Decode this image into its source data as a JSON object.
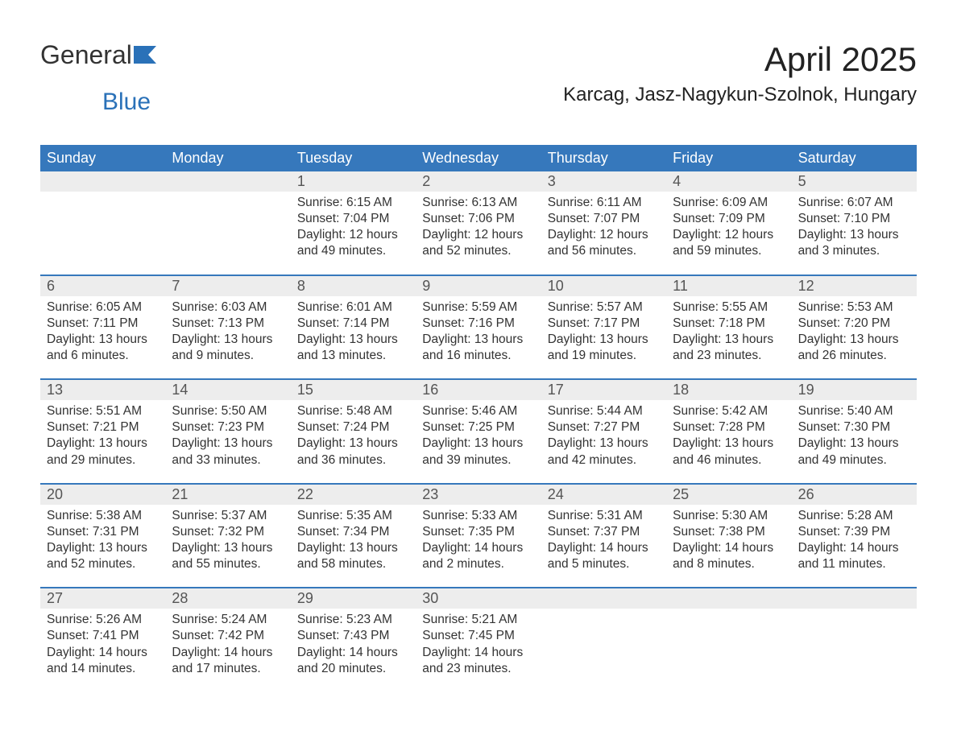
{
  "brand": {
    "part1": "General",
    "part2": "Blue"
  },
  "title": "April 2025",
  "location": "Karcag, Jasz-Nagykun-Szolnok, Hungary",
  "colors": {
    "header_bg": "#3678bc",
    "header_text": "#ffffff",
    "daynum_bg": "#ededed",
    "body_text": "#333333",
    "accent": "#2a71b8"
  },
  "day_labels": [
    "Sunday",
    "Monday",
    "Tuesday",
    "Wednesday",
    "Thursday",
    "Friday",
    "Saturday"
  ],
  "weeks": [
    [
      null,
      null,
      {
        "n": "1",
        "sunrise": "Sunrise: 6:15 AM",
        "sunset": "Sunset: 7:04 PM",
        "dl1": "Daylight: 12 hours",
        "dl2": "and 49 minutes."
      },
      {
        "n": "2",
        "sunrise": "Sunrise: 6:13 AM",
        "sunset": "Sunset: 7:06 PM",
        "dl1": "Daylight: 12 hours",
        "dl2": "and 52 minutes."
      },
      {
        "n": "3",
        "sunrise": "Sunrise: 6:11 AM",
        "sunset": "Sunset: 7:07 PM",
        "dl1": "Daylight: 12 hours",
        "dl2": "and 56 minutes."
      },
      {
        "n": "4",
        "sunrise": "Sunrise: 6:09 AM",
        "sunset": "Sunset: 7:09 PM",
        "dl1": "Daylight: 12 hours",
        "dl2": "and 59 minutes."
      },
      {
        "n": "5",
        "sunrise": "Sunrise: 6:07 AM",
        "sunset": "Sunset: 7:10 PM",
        "dl1": "Daylight: 13 hours",
        "dl2": "and 3 minutes."
      }
    ],
    [
      {
        "n": "6",
        "sunrise": "Sunrise: 6:05 AM",
        "sunset": "Sunset: 7:11 PM",
        "dl1": "Daylight: 13 hours",
        "dl2": "and 6 minutes."
      },
      {
        "n": "7",
        "sunrise": "Sunrise: 6:03 AM",
        "sunset": "Sunset: 7:13 PM",
        "dl1": "Daylight: 13 hours",
        "dl2": "and 9 minutes."
      },
      {
        "n": "8",
        "sunrise": "Sunrise: 6:01 AM",
        "sunset": "Sunset: 7:14 PM",
        "dl1": "Daylight: 13 hours",
        "dl2": "and 13 minutes."
      },
      {
        "n": "9",
        "sunrise": "Sunrise: 5:59 AM",
        "sunset": "Sunset: 7:16 PM",
        "dl1": "Daylight: 13 hours",
        "dl2": "and 16 minutes."
      },
      {
        "n": "10",
        "sunrise": "Sunrise: 5:57 AM",
        "sunset": "Sunset: 7:17 PM",
        "dl1": "Daylight: 13 hours",
        "dl2": "and 19 minutes."
      },
      {
        "n": "11",
        "sunrise": "Sunrise: 5:55 AM",
        "sunset": "Sunset: 7:18 PM",
        "dl1": "Daylight: 13 hours",
        "dl2": "and 23 minutes."
      },
      {
        "n": "12",
        "sunrise": "Sunrise: 5:53 AM",
        "sunset": "Sunset: 7:20 PM",
        "dl1": "Daylight: 13 hours",
        "dl2": "and 26 minutes."
      }
    ],
    [
      {
        "n": "13",
        "sunrise": "Sunrise: 5:51 AM",
        "sunset": "Sunset: 7:21 PM",
        "dl1": "Daylight: 13 hours",
        "dl2": "and 29 minutes."
      },
      {
        "n": "14",
        "sunrise": "Sunrise: 5:50 AM",
        "sunset": "Sunset: 7:23 PM",
        "dl1": "Daylight: 13 hours",
        "dl2": "and 33 minutes."
      },
      {
        "n": "15",
        "sunrise": "Sunrise: 5:48 AM",
        "sunset": "Sunset: 7:24 PM",
        "dl1": "Daylight: 13 hours",
        "dl2": "and 36 minutes."
      },
      {
        "n": "16",
        "sunrise": "Sunrise: 5:46 AM",
        "sunset": "Sunset: 7:25 PM",
        "dl1": "Daylight: 13 hours",
        "dl2": "and 39 minutes."
      },
      {
        "n": "17",
        "sunrise": "Sunrise: 5:44 AM",
        "sunset": "Sunset: 7:27 PM",
        "dl1": "Daylight: 13 hours",
        "dl2": "and 42 minutes."
      },
      {
        "n": "18",
        "sunrise": "Sunrise: 5:42 AM",
        "sunset": "Sunset: 7:28 PM",
        "dl1": "Daylight: 13 hours",
        "dl2": "and 46 minutes."
      },
      {
        "n": "19",
        "sunrise": "Sunrise: 5:40 AM",
        "sunset": "Sunset: 7:30 PM",
        "dl1": "Daylight: 13 hours",
        "dl2": "and 49 minutes."
      }
    ],
    [
      {
        "n": "20",
        "sunrise": "Sunrise: 5:38 AM",
        "sunset": "Sunset: 7:31 PM",
        "dl1": "Daylight: 13 hours",
        "dl2": "and 52 minutes."
      },
      {
        "n": "21",
        "sunrise": "Sunrise: 5:37 AM",
        "sunset": "Sunset: 7:32 PM",
        "dl1": "Daylight: 13 hours",
        "dl2": "and 55 minutes."
      },
      {
        "n": "22",
        "sunrise": "Sunrise: 5:35 AM",
        "sunset": "Sunset: 7:34 PM",
        "dl1": "Daylight: 13 hours",
        "dl2": "and 58 minutes."
      },
      {
        "n": "23",
        "sunrise": "Sunrise: 5:33 AM",
        "sunset": "Sunset: 7:35 PM",
        "dl1": "Daylight: 14 hours",
        "dl2": "and 2 minutes."
      },
      {
        "n": "24",
        "sunrise": "Sunrise: 5:31 AM",
        "sunset": "Sunset: 7:37 PM",
        "dl1": "Daylight: 14 hours",
        "dl2": "and 5 minutes."
      },
      {
        "n": "25",
        "sunrise": "Sunrise: 5:30 AM",
        "sunset": "Sunset: 7:38 PM",
        "dl1": "Daylight: 14 hours",
        "dl2": "and 8 minutes."
      },
      {
        "n": "26",
        "sunrise": "Sunrise: 5:28 AM",
        "sunset": "Sunset: 7:39 PM",
        "dl1": "Daylight: 14 hours",
        "dl2": "and 11 minutes."
      }
    ],
    [
      {
        "n": "27",
        "sunrise": "Sunrise: 5:26 AM",
        "sunset": "Sunset: 7:41 PM",
        "dl1": "Daylight: 14 hours",
        "dl2": "and 14 minutes."
      },
      {
        "n": "28",
        "sunrise": "Sunrise: 5:24 AM",
        "sunset": "Sunset: 7:42 PM",
        "dl1": "Daylight: 14 hours",
        "dl2": "and 17 minutes."
      },
      {
        "n": "29",
        "sunrise": "Sunrise: 5:23 AM",
        "sunset": "Sunset: 7:43 PM",
        "dl1": "Daylight: 14 hours",
        "dl2": "and 20 minutes."
      },
      {
        "n": "30",
        "sunrise": "Sunrise: 5:21 AM",
        "sunset": "Sunset: 7:45 PM",
        "dl1": "Daylight: 14 hours",
        "dl2": "and 23 minutes."
      },
      null,
      null,
      null
    ]
  ]
}
